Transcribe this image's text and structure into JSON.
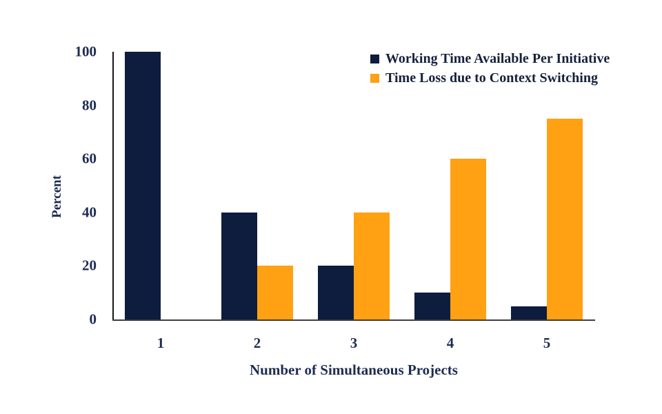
{
  "chart_data": {
    "type": "bar",
    "title": "",
    "categories": [
      "1",
      "2",
      "3",
      "4",
      "5"
    ],
    "series": [
      {
        "name": "Working Time Available Per Initiative",
        "color": "#0e1c3e",
        "values": [
          100,
          40,
          20,
          10,
          5
        ]
      },
      {
        "name": "Time Loss due to Context Switching",
        "color": "#ffa113",
        "values": [
          0,
          20,
          40,
          60,
          75
        ]
      }
    ],
    "xlabel": "Number of Simultaneous Projects",
    "ylabel": "Percent",
    "ylim": [
      0,
      100
    ],
    "yticks": [
      0,
      20,
      40,
      60,
      80,
      100
    ],
    "grid": false,
    "legend_position": "top-right",
    "colors": {
      "axis_text": "#1e2c52",
      "legend_text": "#16203a",
      "y_axis_line": "#15151a",
      "x_axis_line": "#3d3d3d",
      "background": "#ffffff"
    }
  }
}
